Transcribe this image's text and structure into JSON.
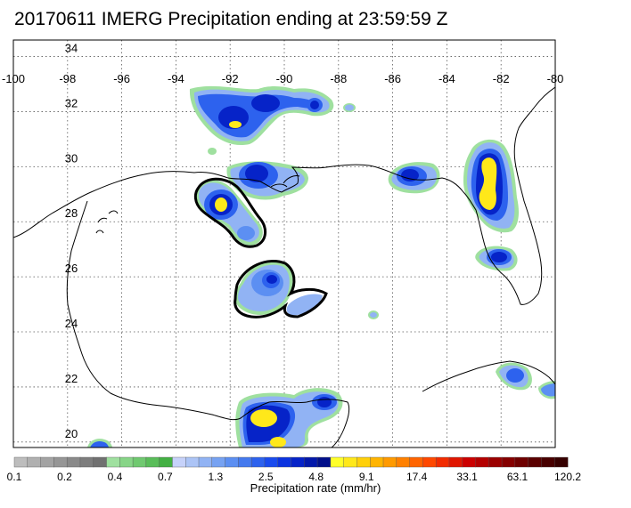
{
  "title": "20170611 IMERG Precipitation ending at 23:59:59 Z",
  "map": {
    "lon_labels": [
      "-100",
      "-98",
      "-96",
      "-94",
      "-92",
      "-90",
      "-88",
      "-86",
      "-84",
      "-82",
      "-80"
    ],
    "lat_labels": [
      "34",
      "32",
      "30",
      "28",
      "26",
      "24",
      "22",
      "20"
    ]
  },
  "colorbar": {
    "title": "Precipitation rate (mm/hr)",
    "labels": [
      "0.1",
      "0.2",
      "0.4",
      "0.7",
      "1.3",
      "2.5",
      "4.8",
      "9.1",
      "17.4",
      "33.1",
      "63.1",
      "120.2"
    ],
    "colors": [
      "#bdbdbd",
      "#b0b0b0",
      "#a3a3a3",
      "#969696",
      "#8a8a8a",
      "#7d7d7d",
      "#717171",
      "#9fe09f",
      "#87d587",
      "#70c970",
      "#59bd59",
      "#43b043",
      "#c6d2fa",
      "#acc4f6",
      "#91b3f4",
      "#76a2f2",
      "#5c8ff2",
      "#4479ee",
      "#2d62ee",
      "#194bee",
      "#0b33e0",
      "#0623c8",
      "#0318aa",
      "#010f8a",
      "#ffff2a",
      "#ffe81a",
      "#ffd00a",
      "#ffb400",
      "#ff9a00",
      "#ff8000",
      "#ff6400",
      "#ff4800",
      "#f22b00",
      "#e01600",
      "#cc0000",
      "#b40000",
      "#9b0000",
      "#850000",
      "#6f0000",
      "#5a0000",
      "#480000",
      "#360000"
    ]
  }
}
